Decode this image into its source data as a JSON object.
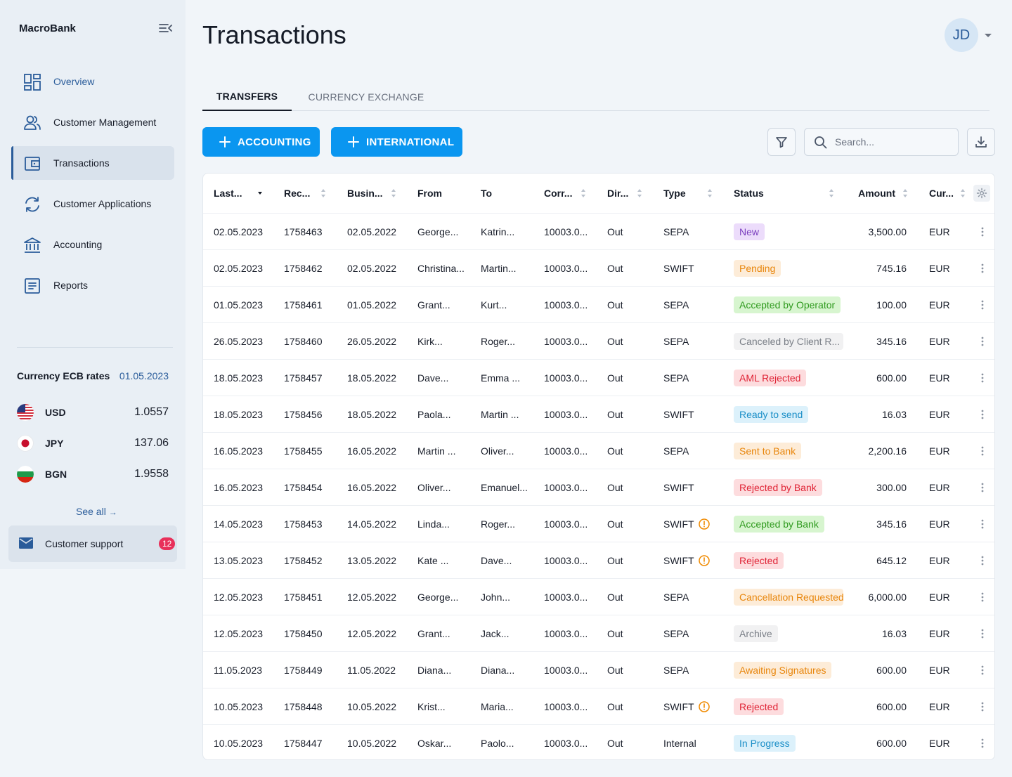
{
  "app": {
    "brand": "MacroBank",
    "page_title": "Transactions",
    "user_initials": "JD"
  },
  "sidebar": {
    "items": [
      {
        "label": "Overview",
        "icon": "dashboard-icon"
      },
      {
        "label": "Customer Management",
        "icon": "users-icon"
      },
      {
        "label": "Transactions",
        "icon": "wallet-icon"
      },
      {
        "label": "Customer Applications",
        "icon": "sync-icon"
      },
      {
        "label": "Accounting",
        "icon": "bank-icon"
      },
      {
        "label": "Reports",
        "icon": "document-icon"
      }
    ],
    "active_index": 2
  },
  "rates": {
    "title": "Currency ECB rates",
    "date": "01.05.2023",
    "items": [
      {
        "code": "USD",
        "value": "1.0557"
      },
      {
        "code": "JPY",
        "value": "137.06"
      },
      {
        "code": "BGN",
        "value": "1.9558"
      }
    ],
    "see_all": "See all"
  },
  "support": {
    "label": "Customer support",
    "count": "12"
  },
  "tabs": [
    {
      "label": "TRANSFERS"
    },
    {
      "label": "CURRENCY EXCHANGE"
    }
  ],
  "actions": {
    "accounting": "ACCOUNTING",
    "international": "INTERNATIONAL",
    "search_placeholder": "Search..."
  },
  "table": {
    "columns": [
      "Last...",
      "Rec...",
      "Busin...",
      "From",
      "To",
      "Corr...",
      "Dir...",
      "Type",
      "Status",
      "Amount",
      "Cur..."
    ],
    "rows": [
      {
        "last": "02.05.2023",
        "rec": "1758463",
        "busin": "02.05.2022",
        "from": "George...",
        "to": "Katrin...",
        "corr": "10003.0...",
        "dir": "Out",
        "type": "SEPA",
        "warn": false,
        "status": "New",
        "tone": "purple",
        "amount": "3,500.00",
        "cur": "EUR"
      },
      {
        "last": "02.05.2023",
        "rec": "1758462",
        "busin": "02.05.2022",
        "from": "Christina...",
        "to": "Martin...",
        "corr": "10003.0...",
        "dir": "Out",
        "type": "SWIFT",
        "warn": false,
        "status": "Pending",
        "tone": "orange",
        "amount": "745.16",
        "cur": "EUR"
      },
      {
        "last": "01.05.2023",
        "rec": "1758461",
        "busin": "01.05.2022",
        "from": "Grant...",
        "to": "Kurt...",
        "corr": "10003.0...",
        "dir": "Out",
        "type": "SEPA",
        "warn": false,
        "status": "Accepted by Operator",
        "tone": "green",
        "amount": "100.00",
        "cur": "EUR"
      },
      {
        "last": "26.05.2023",
        "rec": "1758460",
        "busin": "26.05.2022",
        "from": "Kirk...",
        "to": "Roger...",
        "corr": "10003.0...",
        "dir": "Out",
        "type": "SEPA",
        "warn": false,
        "status": "Canceled by Client R...",
        "tone": "grey",
        "amount": "345.16",
        "cur": "EUR"
      },
      {
        "last": "18.05.2023",
        "rec": "1758457",
        "busin": "18.05.2022",
        "from": "Dave...",
        "to": "Emma ...",
        "corr": "10003.0...",
        "dir": "Out",
        "type": "SEPA",
        "warn": false,
        "status": "AML Rejected",
        "tone": "red",
        "amount": "600.00",
        "cur": "EUR"
      },
      {
        "last": "18.05.2023",
        "rec": "1758456",
        "busin": "18.05.2022",
        "from": "Paola...",
        "to": "Martin ...",
        "corr": "10003.0...",
        "dir": "Out",
        "type": "SWIFT",
        "warn": false,
        "status": "Ready to send",
        "tone": "blue",
        "amount": "16.03",
        "cur": "EUR"
      },
      {
        "last": "16.05.2023",
        "rec": "1758455",
        "busin": "16.05.2022",
        "from": "Martin ...",
        "to": "Oliver...",
        "corr": "10003.0...",
        "dir": "Out",
        "type": "SEPA",
        "warn": false,
        "status": "Sent to Bank",
        "tone": "orange",
        "amount": "2,200.16",
        "cur": "EUR"
      },
      {
        "last": "16.05.2023",
        "rec": "1758454",
        "busin": "16.05.2022",
        "from": "Oliver...",
        "to": "Emanuel...",
        "corr": "10003.0...",
        "dir": "Out",
        "type": "SWIFT",
        "warn": false,
        "status": "Rejected by Bank",
        "tone": "red",
        "amount": "300.00",
        "cur": "EUR"
      },
      {
        "last": "14.05.2023",
        "rec": "1758453",
        "busin": "14.05.2022",
        "from": "Linda...",
        "to": "Roger...",
        "corr": "10003.0...",
        "dir": "Out",
        "type": "SWIFT",
        "warn": true,
        "status": "Accepted by Bank",
        "tone": "green",
        "amount": "345.16",
        "cur": "EUR"
      },
      {
        "last": "13.05.2023",
        "rec": "1758452",
        "busin": "13.05.2022",
        "from": "Kate ...",
        "to": "Dave...",
        "corr": "10003.0...",
        "dir": "Out",
        "type": "SWIFT",
        "warn": true,
        "status": "Rejected",
        "tone": "red",
        "amount": "645.12",
        "cur": "EUR"
      },
      {
        "last": "12.05.2023",
        "rec": "1758451",
        "busin": "12.05.2022",
        "from": "George...",
        "to": "John...",
        "corr": "10003.0...",
        "dir": "Out",
        "type": "SEPA",
        "warn": false,
        "status": "Cancellation Requested",
        "tone": "orange",
        "amount": "6,000.00",
        "cur": "EUR"
      },
      {
        "last": "12.05.2023",
        "rec": "1758450",
        "busin": "12.05.2022",
        "from": "Grant...",
        "to": "Jack...",
        "corr": "10003.0...",
        "dir": "Out",
        "type": "SEPA",
        "warn": false,
        "status": "Archive",
        "tone": "grey",
        "amount": "16.03",
        "cur": "EUR"
      },
      {
        "last": "11.05.2023",
        "rec": "1758449",
        "busin": "11.05.2022",
        "from": "Diana...",
        "to": "Diana...",
        "corr": "10003.0...",
        "dir": "Out",
        "type": "SEPA",
        "warn": false,
        "status": "Awaiting Signatures",
        "tone": "orange",
        "amount": "600.00",
        "cur": "EUR"
      },
      {
        "last": "10.05.2023",
        "rec": "1758448",
        "busin": "10.05.2022",
        "from": "Krist...",
        "to": "Maria...",
        "corr": "10003.0...",
        "dir": "Out",
        "type": "SWIFT",
        "warn": true,
        "status": "Rejected",
        "tone": "red",
        "amount": "600.00",
        "cur": "EUR"
      },
      {
        "last": "10.05.2023",
        "rec": "1758447",
        "busin": "10.05.2022",
        "from": "Oskar...",
        "to": "Paolo...",
        "corr": "10003.0...",
        "dir": "Out",
        "type": "Internal",
        "warn": false,
        "status": "In Progress",
        "tone": "blue",
        "amount": "600.00",
        "cur": "EUR"
      }
    ]
  },
  "colors": {
    "primary": "#0a96f0",
    "accent": "#2a5c9a",
    "tones": {
      "purple": {
        "bg": "#ecdcfb",
        "fg": "#7b3fbf"
      },
      "orange": {
        "bg": "#fdecd8",
        "fg": "#e8860c"
      },
      "green": {
        "bg": "#d7f5cf",
        "fg": "#2f9a1e"
      },
      "grey": {
        "bg": "#f1f1f2",
        "fg": "#7a7f87"
      },
      "red": {
        "bg": "#fddcde",
        "fg": "#e02436"
      },
      "blue": {
        "bg": "#dcf1fb",
        "fg": "#1a8ec7"
      }
    }
  }
}
